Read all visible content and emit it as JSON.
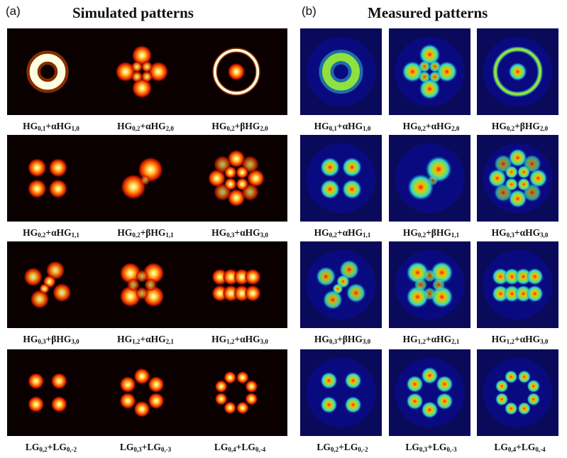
{
  "panels": {
    "left": {
      "label": "(a)",
      "title": "Simulated patterns",
      "rows": [
        {
          "captions": [
            [
              "HG",
              "0,1",
              "+αHG",
              "1,0"
            ],
            [
              "HG",
              "0,2",
              "+αHG",
              "2,0"
            ],
            [
              "HG",
              "0,2",
              "+βHG",
              "2,0"
            ]
          ],
          "patterns": [
            {
              "shape": "ring",
              "lobes": 0
            },
            {
              "shape": "cross4",
              "lobes": 4
            },
            {
              "shape": "ring-dot",
              "lobes": 0
            }
          ]
        },
        {
          "captions": [
            [
              "HG",
              "0,2",
              "+αHG",
              "1,1"
            ],
            [
              "HG",
              "0,2",
              "+βHG",
              "1,1"
            ],
            [
              "HG",
              "0,3",
              "+αHG",
              "3,0"
            ]
          ],
          "patterns": [
            {
              "shape": "diag",
              "lobes": 4
            },
            {
              "shape": "diag2",
              "lobes": 2
            },
            {
              "shape": "grid",
              "lobes": 12
            }
          ]
        },
        {
          "captions": [
            [
              "HG",
              "0,3",
              "+βHG",
              "3,0"
            ],
            [
              "HG",
              "1,2",
              "+αHG",
              "2,1"
            ],
            [
              "HG",
              "1,2",
              "+αHG",
              "3,0"
            ]
          ],
          "patterns": [
            {
              "shape": "tilted",
              "lobes": 6
            },
            {
              "shape": "cross4",
              "lobes": 8
            },
            {
              "shape": "twocol",
              "lobes": 8
            }
          ]
        },
        {
          "captions": [
            [
              "LG",
              "0,2",
              "+LG",
              "0,-2"
            ],
            [
              "LG",
              "0,3",
              "+LG",
              "0,-3"
            ],
            [
              "LG",
              "0,4",
              "+LG",
              "0,-4"
            ]
          ],
          "patterns": [
            {
              "shape": "petal",
              "lobes": 4
            },
            {
              "shape": "petal",
              "lobes": 6
            },
            {
              "shape": "petal",
              "lobes": 8
            }
          ]
        }
      ]
    },
    "right": {
      "label": "(b)",
      "title": "Measured patterns",
      "rows": [
        {
          "captions": [
            [
              "HG",
              "0,1",
              "+αHG",
              "1,0"
            ],
            [
              "HG",
              "0,2",
              "+αHG",
              "2,0"
            ],
            [
              "HG",
              "0,2",
              "+βHG",
              "2,0"
            ]
          ],
          "patterns": [
            {
              "shape": "ring",
              "lobes": 0
            },
            {
              "shape": "cross4",
              "lobes": 4
            },
            {
              "shape": "ring-dot",
              "lobes": 0
            }
          ]
        },
        {
          "captions": [
            [
              "HG",
              "0,2",
              "+αHG",
              "1,1"
            ],
            [
              "HG",
              "0,2",
              "+βHG",
              "1,1"
            ],
            [
              "HG",
              "0,3",
              "+αHG",
              "3,0"
            ]
          ],
          "patterns": [
            {
              "shape": "diag",
              "lobes": 4
            },
            {
              "shape": "diag2",
              "lobes": 2
            },
            {
              "shape": "grid",
              "lobes": 12
            }
          ]
        },
        {
          "captions": [
            [
              "HG",
              "0,3",
              "+βHG",
              "3,0"
            ],
            [
              "HG",
              "1,2",
              "+αHG",
              "2,1"
            ],
            [
              "HG",
              "1,2",
              "+αHG",
              "3,0"
            ]
          ],
          "patterns": [
            {
              "shape": "tilted",
              "lobes": 6
            },
            {
              "shape": "cross4",
              "lobes": 8
            },
            {
              "shape": "twocol",
              "lobes": 8
            }
          ]
        },
        {
          "captions": [
            [
              "LG",
              "0,2",
              "+LG",
              "0,-2"
            ],
            [
              "LG",
              "0,3",
              "+LG",
              "0,-3"
            ],
            [
              "LG",
              "0,4",
              "+LG",
              "0,-4"
            ]
          ],
          "patterns": [
            {
              "shape": "petal",
              "lobes": 4
            },
            {
              "shape": "petal",
              "lobes": 6
            },
            {
              "shape": "petal",
              "lobes": 8
            }
          ]
        }
      ]
    }
  },
  "colors": {
    "sim_background": "#0a0000",
    "sim_hot": [
      "#3a0000",
      "#b01000",
      "#ff5a00",
      "#ffd040",
      "#ffffe0"
    ],
    "meas_background": "#0a0a5a",
    "meas_jet": [
      "#0a0a8a",
      "#1a6ad0",
      "#30d0d0",
      "#90e040",
      "#ffb000",
      "#e02010"
    ]
  }
}
